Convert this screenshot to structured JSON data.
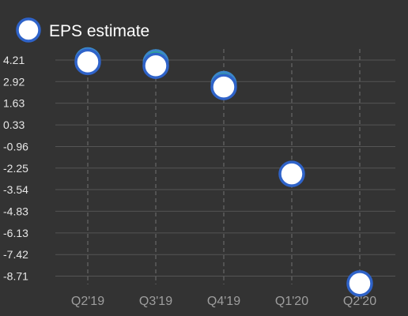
{
  "colors": {
    "background": "#333333",
    "grid_horizontal": "#555555",
    "grid_vertical": "#5c5c5c",
    "marker_fill": "#ffffff",
    "marker_stroke": "#2f63c9",
    "actual_marker_fill": "#2fb380",
    "actual_marker_stroke": "#3a87c8",
    "tick_text": "#e6e6e6",
    "category_text": "#9e9e9e",
    "legend_text": "#ffffff"
  },
  "legend": {
    "label": "EPS estimate",
    "position": "top-left"
  },
  "chart_data": {
    "type": "scatter",
    "categories": [
      "Q2'19",
      "Q3'19",
      "Q4'19",
      "Q1'20",
      "Q2'20"
    ],
    "y_ticks": [
      "4.21",
      "2.92",
      "1.63",
      "0.33",
      "-0.96",
      "-2.25",
      "-3.54",
      "-4.83",
      "-6.13",
      "-7.42",
      "-8.71"
    ],
    "ylim": [
      -9.36,
      4.86
    ],
    "grid": {
      "horizontal": true,
      "vertical": true,
      "vertical_style": "dashed"
    },
    "series": [
      {
        "name": "EPS estimate",
        "values": [
          4.1,
          3.87,
          2.6,
          -2.6,
          -9.15
        ]
      },
      {
        "values": [
          4.2,
          4.08,
          2.78,
          null,
          null
        ]
      }
    ]
  }
}
